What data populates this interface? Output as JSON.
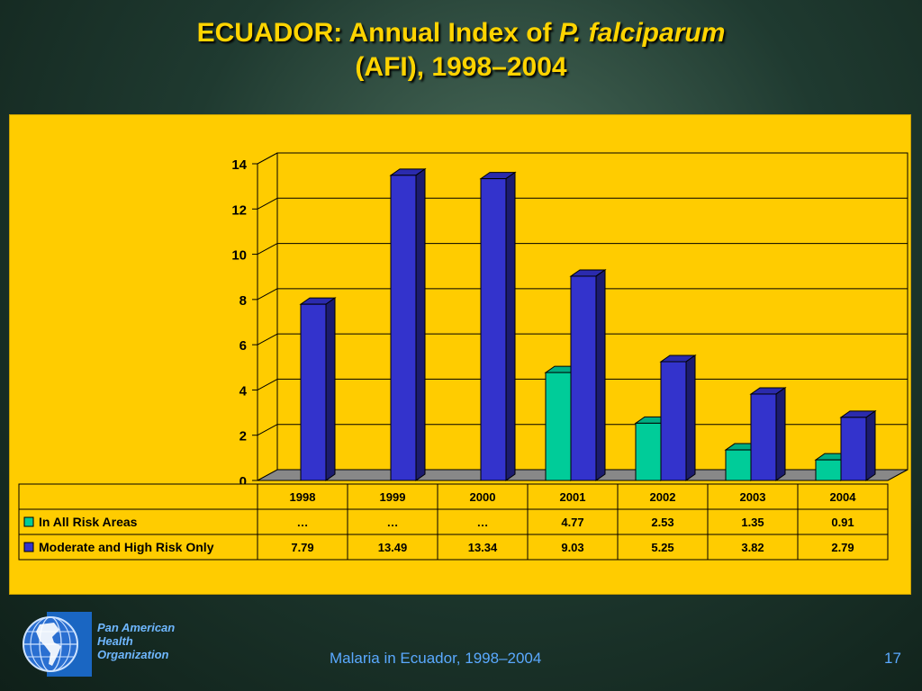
{
  "title": {
    "line1_prefix": "ECUADOR: Annual Index of ",
    "line1_italic": "P. falciparum",
    "line2": "(AFI), 1998–2004"
  },
  "chart_data": {
    "type": "bar",
    "categories": [
      "1998",
      "1999",
      "2000",
      "2001",
      "2002",
      "2003",
      "2004"
    ],
    "series": [
      {
        "name": "In All Risk Areas",
        "values": [
          null,
          null,
          null,
          4.77,
          2.53,
          1.35,
          0.91
        ],
        "table_labels": [
          "…",
          "…",
          "…",
          "4.77",
          "2.53",
          "1.35",
          "0.91"
        ],
        "color": "#00cc99"
      },
      {
        "name": "Moderate and High Risk Only",
        "values": [
          7.79,
          13.49,
          13.34,
          9.03,
          5.25,
          3.82,
          2.79
        ],
        "table_labels": [
          "7.79",
          "13.49",
          "13.34",
          "9.03",
          "5.25",
          "3.82",
          "2.79"
        ],
        "color": "#3333cc"
      }
    ],
    "ylim": [
      0,
      14
    ],
    "yticks": [
      "0",
      "2",
      "4",
      "6",
      "8",
      "10",
      "12",
      "14"
    ],
    "grid": true,
    "data_table": true
  },
  "organization": {
    "line1": "Pan American",
    "line2": "Health",
    "line3": "Organization"
  },
  "footer": {
    "caption": "Malaria in Ecuador, 1998–2004",
    "page_number": "17"
  }
}
